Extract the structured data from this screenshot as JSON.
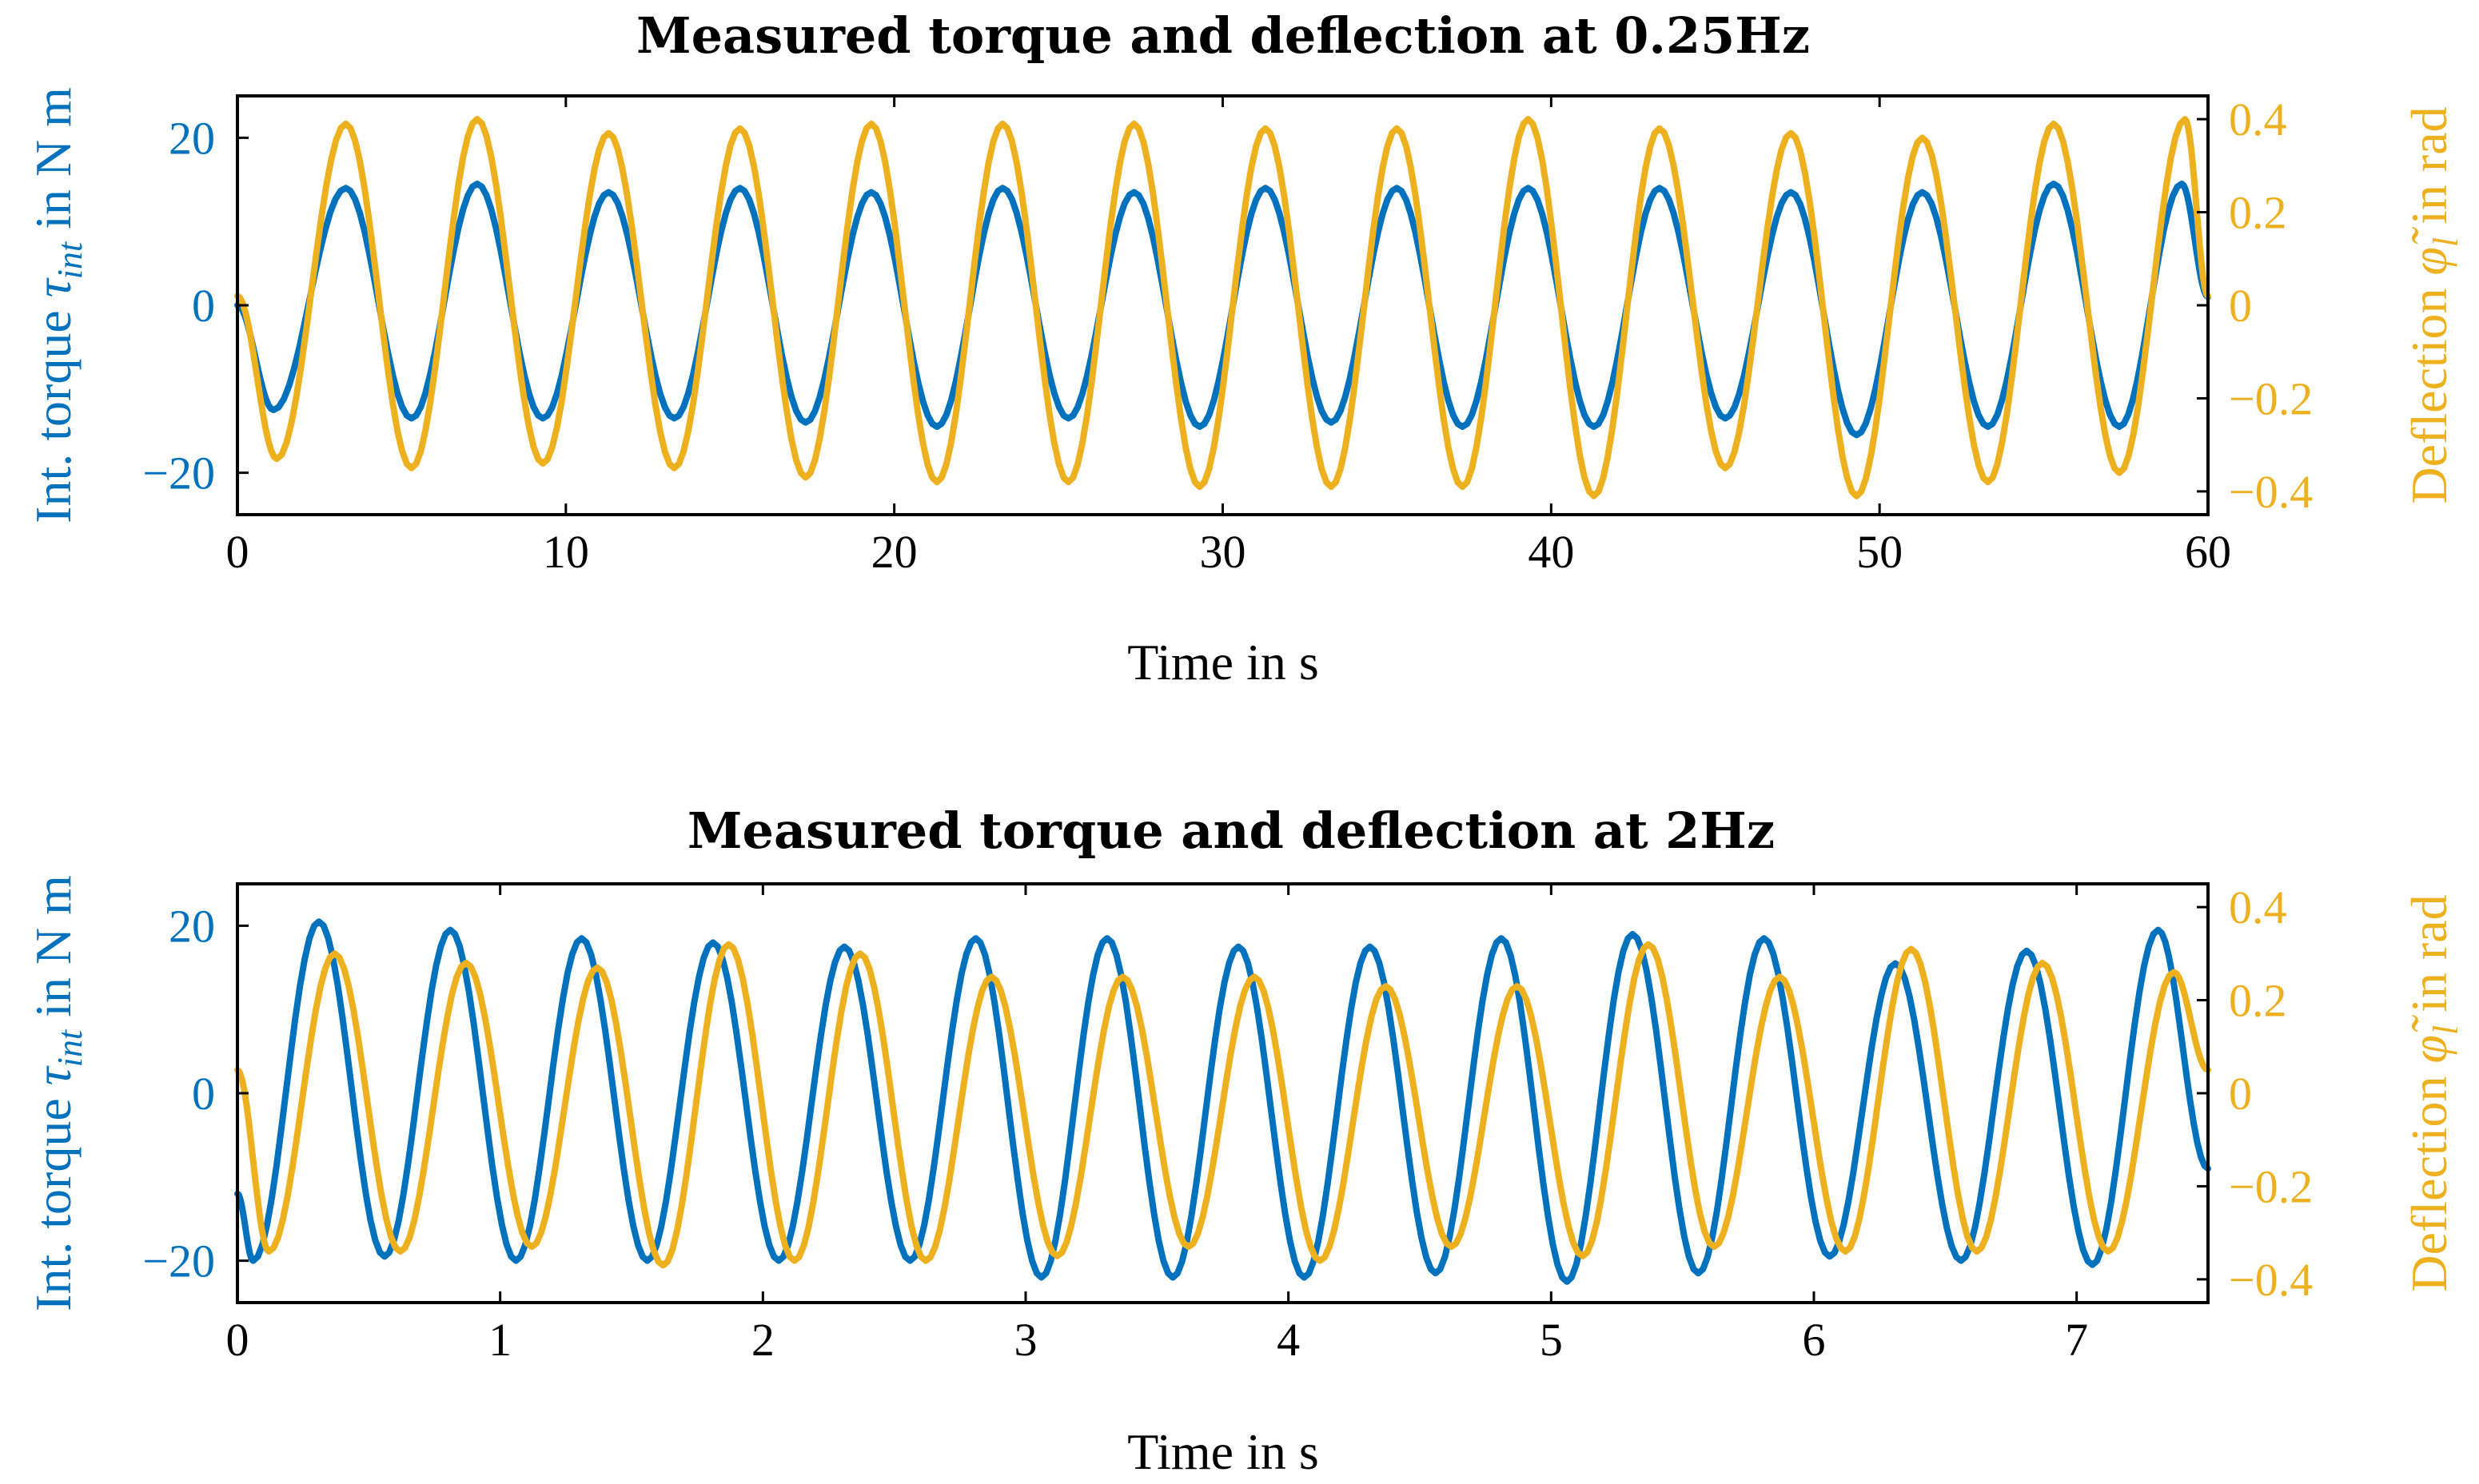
{
  "colors": {
    "torque": "#0072BD",
    "deflection": "#EDB120",
    "axis": "#000000"
  },
  "chart_data": [
    {
      "type": "line",
      "title": "Measured torque and deflection at 0.25Hz",
      "xlabel": "Time in s",
      "ylabel_left": "Int. torque τ_int in N m",
      "ylabel_left_main": "Int. torque ",
      "ylabel_left_sym": "τ",
      "ylabel_left_sub": "int",
      "ylabel_left_unit": " in N m",
      "ylabel_right": "Deflection φ̃_l in rad",
      "ylabel_right_main": "Deflection ",
      "ylabel_right_sym": "φ̃",
      "ylabel_right_sub": "l",
      "ylabel_right_unit": " in rad",
      "xlim": [
        0,
        60
      ],
      "ylim_left": [
        -25,
        25
      ],
      "ylim_right": [
        -0.45,
        0.45
      ],
      "xticks": [
        0,
        10,
        20,
        30,
        40,
        50,
        60
      ],
      "xtick_labels": [
        "0",
        "10",
        "20",
        "30",
        "40",
        "50",
        "60"
      ],
      "yticks_left": [
        -20,
        0,
        20
      ],
      "ytick_labels_left": [
        "−20",
        "0",
        "20"
      ],
      "yticks_right": [
        -0.4,
        -0.2,
        0,
        0.2,
        0.4
      ],
      "ytick_labels_right": [
        "−0.4",
        "−0.2",
        "0",
        "0.2",
        "0.4"
      ],
      "series": [
        {
          "name": "Int. torque",
          "axis": "left",
          "color_key": "torque",
          "x": [
            0,
            1.1,
            3.3,
            5.3,
            7.3,
            9.3,
            11.3,
            13.3,
            15.3,
            17.3,
            19.3,
            21.3,
            23.3,
            25.3,
            27.3,
            29.3,
            31.3,
            33.3,
            35.3,
            37.3,
            39.3,
            41.3,
            43.3,
            45.3,
            47.3,
            49.3,
            51.3,
            53.3,
            55.3,
            57.3,
            59.2,
            60
          ],
          "values": [
            0,
            -12.5,
            14,
            -13.5,
            14.5,
            -13.5,
            13.5,
            -13.5,
            14,
            -14,
            13.5,
            -14.5,
            14,
            -13.5,
            13.5,
            -14.5,
            14,
            -14,
            14,
            -14.5,
            14,
            -14.5,
            14,
            -13.5,
            13.5,
            -15.5,
            13.5,
            -14.5,
            14.5,
            -14.5,
            14.5,
            1
          ]
        },
        {
          "name": "Deflection",
          "axis": "right",
          "color_key": "deflection",
          "x": [
            0,
            1.2,
            3.3,
            5.3,
            7.3,
            9.3,
            11.3,
            13.3,
            15.3,
            17.3,
            19.3,
            21.3,
            23.3,
            25.3,
            27.3,
            29.3,
            31.3,
            33.3,
            35.3,
            37.3,
            39.3,
            41.3,
            43.3,
            45.3,
            47.3,
            49.3,
            51.3,
            53.3,
            55.3,
            57.3,
            59.3,
            60
          ],
          "values": [
            0.02,
            -0.33,
            0.39,
            -0.35,
            0.4,
            -0.34,
            0.37,
            -0.35,
            0.38,
            -0.37,
            0.39,
            -0.38,
            0.39,
            -0.38,
            0.39,
            -0.39,
            0.38,
            -0.39,
            0.38,
            -0.39,
            0.4,
            -0.41,
            0.38,
            -0.35,
            0.37,
            -0.41,
            0.36,
            -0.38,
            0.39,
            -0.36,
            0.4,
            0.02
          ]
        }
      ]
    },
    {
      "type": "line",
      "title": "Measured torque and deflection at 2Hz",
      "xlabel": "Time in s",
      "ylabel_left": "Int. torque τ_int in N m",
      "ylabel_left_main": "Int. torque ",
      "ylabel_left_sym": "τ",
      "ylabel_left_sub": "int",
      "ylabel_left_unit": " in N m",
      "ylabel_right": "Deflection φ̃_l in rad",
      "ylabel_right_main": "Deflection ",
      "ylabel_right_sym": "φ̃",
      "ylabel_right_sub": "l",
      "ylabel_right_unit": " in rad",
      "xlim": [
        0,
        7.5
      ],
      "ylim_left": [
        -25,
        25
      ],
      "ylim_right": [
        -0.45,
        0.45
      ],
      "xticks": [
        0,
        1,
        2,
        3,
        4,
        5,
        6,
        7
      ],
      "xtick_labels": [
        "0",
        "1",
        "2",
        "3",
        "4",
        "5",
        "6",
        "7"
      ],
      "yticks_left": [
        -20,
        0,
        20
      ],
      "ytick_labels_left": [
        "−20",
        "0",
        "20"
      ],
      "yticks_right": [
        -0.4,
        -0.2,
        0,
        0.2,
        0.4
      ],
      "ytick_labels_right": [
        "−0.4",
        "−0.2",
        "0",
        "0.2",
        "0.4"
      ],
      "series": [
        {
          "name": "Int. torque",
          "axis": "left",
          "color_key": "torque",
          "x": [
            0,
            0.06,
            0.31,
            0.56,
            0.81,
            1.06,
            1.31,
            1.56,
            1.81,
            2.06,
            2.31,
            2.56,
            2.81,
            3.06,
            3.31,
            3.56,
            3.81,
            4.06,
            4.31,
            4.56,
            4.81,
            5.06,
            5.31,
            5.56,
            5.81,
            6.06,
            6.31,
            6.56,
            6.81,
            7.06,
            7.31,
            7.5
          ],
          "values": [
            -12,
            -20,
            20.5,
            -19.5,
            19.5,
            -20,
            18.5,
            -20,
            18,
            -20,
            17.5,
            -20,
            18.5,
            -22,
            18.5,
            -22,
            17.5,
            -22,
            17.5,
            -21.5,
            18.5,
            -22.5,
            19,
            -21.5,
            18.5,
            -19.5,
            15.5,
            -20,
            17,
            -20.5,
            19.5,
            -9
          ]
        },
        {
          "name": "Deflection",
          "axis": "right",
          "color_key": "deflection",
          "x": [
            0,
            0.12,
            0.37,
            0.62,
            0.87,
            1.12,
            1.37,
            1.62,
            1.87,
            2.12,
            2.37,
            2.62,
            2.87,
            3.12,
            3.37,
            3.62,
            3.87,
            4.12,
            4.37,
            4.62,
            4.87,
            5.12,
            5.37,
            5.62,
            5.87,
            6.12,
            6.37,
            6.62,
            6.87,
            7.12,
            7.37,
            7.5
          ],
          "values": [
            0.05,
            -0.34,
            0.3,
            -0.34,
            0.28,
            -0.33,
            0.27,
            -0.37,
            0.32,
            -0.36,
            0.3,
            -0.36,
            0.25,
            -0.35,
            0.25,
            -0.33,
            0.25,
            -0.36,
            0.23,
            -0.33,
            0.23,
            -0.35,
            0.32,
            -0.33,
            0.25,
            -0.34,
            0.31,
            -0.34,
            0.28,
            -0.34,
            0.26,
            0.05
          ]
        }
      ]
    }
  ]
}
